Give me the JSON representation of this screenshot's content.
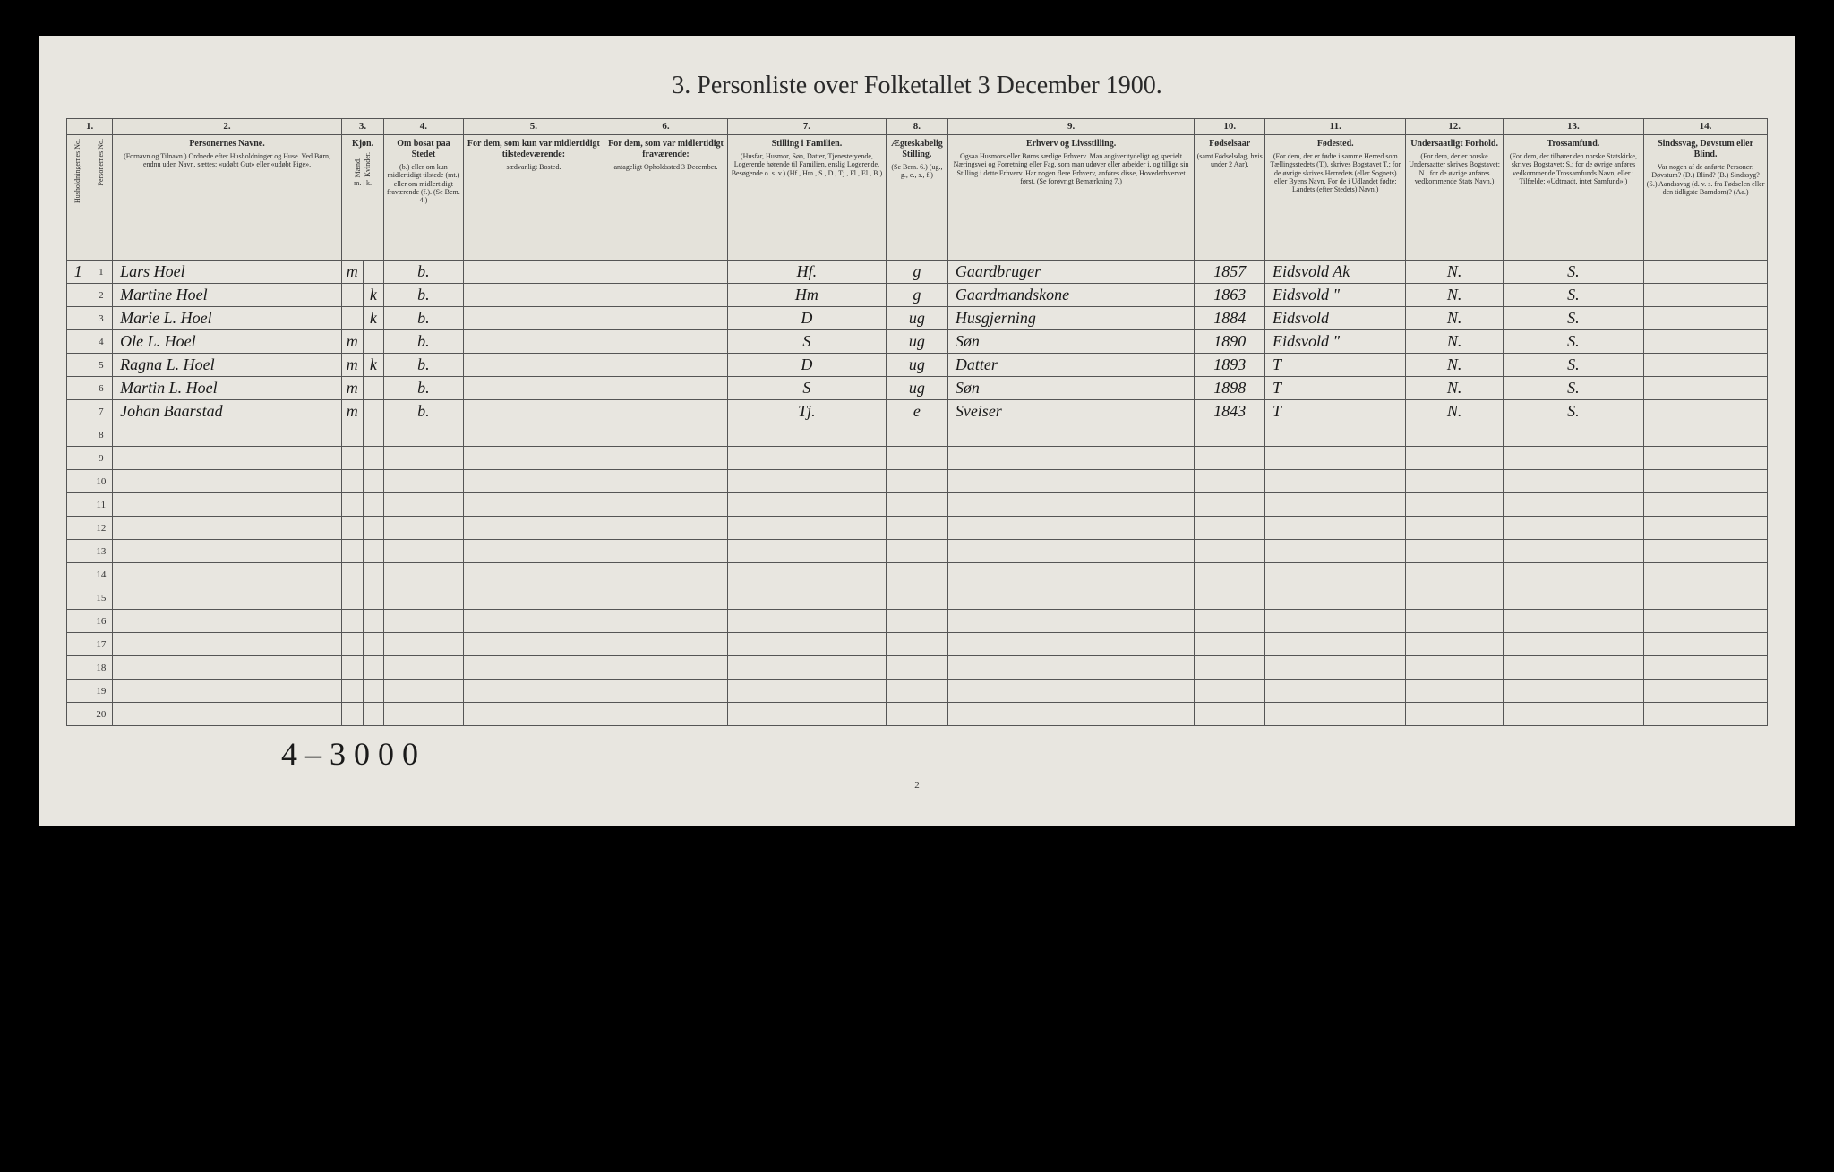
{
  "title": "3. Personliste over Folketallet 3 December 1900.",
  "page_number": "2",
  "footer_handwritten": "4 – 3 0 0 0",
  "background_color": "#e8e6e0",
  "border_color": "#555555",
  "text_color": "#2a2a2a",
  "handwriting_color": "#1a1a1a",
  "colnums": [
    "1.",
    "",
    "2.",
    "3.",
    "",
    "4.",
    "5.",
    "6.",
    "7.",
    "8.",
    "9.",
    "10.",
    "11.",
    "12.",
    "13.",
    "14."
  ],
  "headers": {
    "c1a": "Husholdningernes No.",
    "c1b": "Personernes No.",
    "c2_main": "Personernes Navne.",
    "c2_sub": "(Fornavn og Tilnavn.) Ordnede efter Husholdninger og Huse. Ved Børn, endnu uden Navn, sættes: «udøbt Gut» eller «udøbt Pige».",
    "c3_main": "Kjøn.",
    "c3_m": "Mænd.",
    "c3_k": "Kvinder.",
    "c3_mk": "m. | k.",
    "c4_main": "Om bosat paa Stedet",
    "c4_sub": "(b.) eller om kun midlertidigt tilstede (mt.) eller om midlertidigt fraværende (f.). (Se Bem. 4.)",
    "c5_main": "For dem, som kun var midlertidigt tilstedeværende:",
    "c5_sub": "sædvanligt Bosted.",
    "c6_main": "For dem, som var midlertidigt fraværende:",
    "c6_sub": "antageligt Opholdssted 3 December.",
    "c7_main": "Stilling i Familien.",
    "c7_sub": "(Husfar, Husmor, Søn, Datter, Tjenestetyende, Logerende hørende til Familien, enslig Logerende, Besøgende o. s. v.) (Hf., Hm., S., D., Tj., Fl., El., B.)",
    "c8_main": "Ægteskabelig Stilling.",
    "c8_sub": "(Se Bem. 6.) (ug., g., e., s., f.)",
    "c9_main": "Erhverv og Livsstilling.",
    "c9_sub": "Ogsaa Husmors eller Børns særlige Erhverv. Man angiver tydeligt og specielt Næringsvei og Forretning eller Fag, som man udøver eller arbeider i, og tillige sin Stilling i dette Erhverv. Har nogen flere Erhverv, anføres disse, Hovederhvervet først. (Se forøvrigt Bemærkning 7.)",
    "c10_main": "Fødselsaar",
    "c10_sub": "(samt Fødselsdag, hvis under 2 Aar).",
    "c11_main": "Fødested.",
    "c11_sub": "(For dem, der er fødte i samme Herred som Tællingsstedets (T.), skrives Bogstavet T.; for de øvrige skrives Herredets (eller Sognets) eller Byens Navn. For de i Udlandet fødte: Landets (efter Stedets) Navn.)",
    "c12_main": "Undersaatligt Forhold.",
    "c12_sub": "(For dem, der er norske Undersaatter skrives Bogstavet: N.; for de øvrige anføres vedkommende Stats Navn.)",
    "c13_main": "Trossamfund.",
    "c13_sub": "(For dem, der tilhører den norske Statskirke, skrives Bogstavet: S.; for de øvrige anføres vedkommende Trossamfunds Navn, eller i Tilfælde: «Udtraadt, intet Samfund».)",
    "c14_main": "Sindssvag, Døvstum eller Blind.",
    "c14_sub": "Var nogen af de anførte Personer: Døvstum? (D.) Blind? (B.) Sindssyg? (S.) Aandssvag (d. v. s. fra Fødselen eller den tidligste Barndom)? (Aa.)"
  },
  "rows": [
    {
      "hh": "1",
      "pn": "1",
      "name": "Lars Hoel",
      "m": "m",
      "k": "",
      "bosat": "b.",
      "c5": "",
      "c6": "",
      "fam": "Hf.",
      "egte": "g",
      "erhverv": "Gaardbruger",
      "aar": "1857",
      "fsted": "Eidsvold   Ak",
      "und": "N.",
      "tro": "S.",
      "c14": ""
    },
    {
      "hh": "",
      "pn": "2",
      "name": "Martine Hoel",
      "m": "",
      "k": "k",
      "bosat": "b.",
      "c5": "",
      "c6": "",
      "fam": "Hm",
      "egte": "g",
      "erhverv": "Gaardmandskone",
      "aar": "1863",
      "fsted": "Eidsvold  \"",
      "und": "N.",
      "tro": "S.",
      "c14": ""
    },
    {
      "hh": "",
      "pn": "3",
      "name": "Marie L. Hoel",
      "m": "",
      "k": "k",
      "bosat": "b.",
      "c5": "",
      "c6": "",
      "fam": "D",
      "egte": "ug",
      "erhverv": "Husgjerning",
      "aar": "1884",
      "fsted": "Eidsvold",
      "und": "N.",
      "tro": "S.",
      "c14": ""
    },
    {
      "hh": "",
      "pn": "4",
      "name": "Ole L. Hoel",
      "m": "m",
      "k": "",
      "bosat": "b.",
      "c5": "",
      "c6": "",
      "fam": "S",
      "egte": "ug",
      "erhverv": "Søn",
      "aar": "1890",
      "fsted": "Eidsvold \"",
      "und": "N.",
      "tro": "S.",
      "c14": ""
    },
    {
      "hh": "",
      "pn": "5",
      "name": "Ragna L. Hoel",
      "m": "m",
      "k": "k",
      "bosat": "b.",
      "c5": "",
      "c6": "",
      "fam": "D",
      "egte": "ug",
      "erhverv": "Datter",
      "aar": "1893",
      "fsted": "T",
      "und": "N.",
      "tro": "S.",
      "c14": ""
    },
    {
      "hh": "",
      "pn": "6",
      "name": "Martin L. Hoel",
      "m": "m",
      "k": "",
      "bosat": "b.",
      "c5": "",
      "c6": "",
      "fam": "S",
      "egte": "ug",
      "erhverv": "Søn",
      "aar": "1898",
      "fsted": "T",
      "und": "N.",
      "tro": "S.",
      "c14": ""
    },
    {
      "hh": "",
      "pn": "7",
      "name": "Johan Baarstad",
      "m": "m",
      "k": "",
      "bosat": "b.",
      "c5": "",
      "c6": "",
      "fam": "Tj.",
      "egte": "e",
      "erhverv": "Sveiser",
      "aar": "1843",
      "fsted": "T",
      "und": "N.",
      "tro": "S.",
      "c14": ""
    }
  ],
  "empty_rows": [
    8,
    9,
    10,
    11,
    12,
    13,
    14,
    15,
    16,
    17,
    18,
    19,
    20
  ]
}
